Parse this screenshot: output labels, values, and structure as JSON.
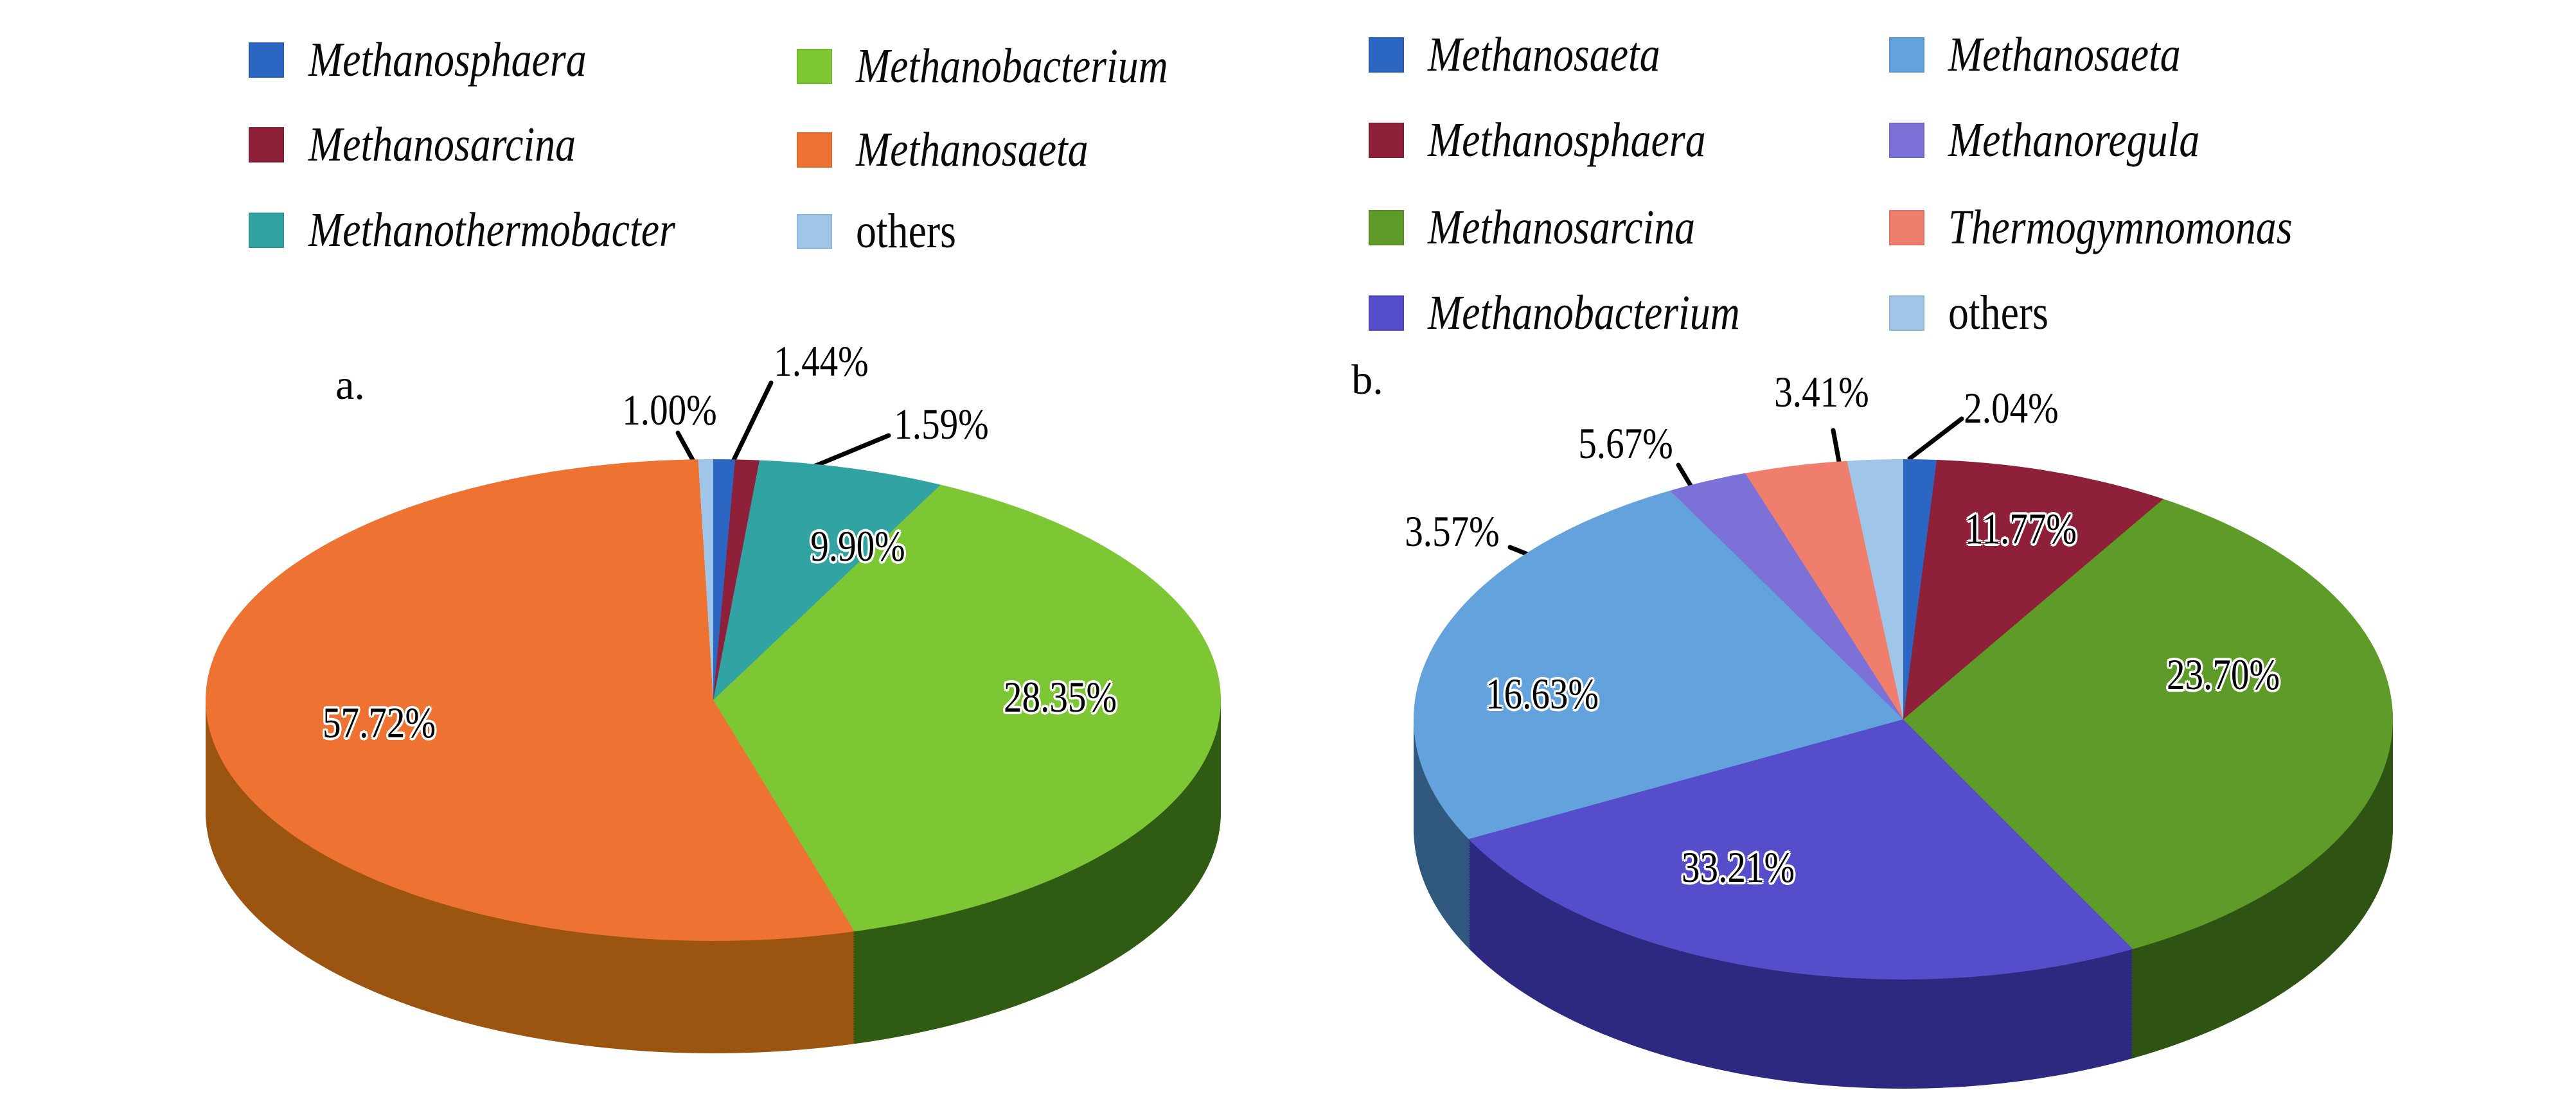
{
  "figure": {
    "background_color": "#ffffff",
    "legend_position": "top",
    "label_font_color": "#000000"
  },
  "chart_data": [
    {
      "type": "pie",
      "panel_tag": "a.",
      "effect": "3d",
      "slices": [
        {
          "label": "Methanosphaera",
          "value": 1.44,
          "color": "#2B66C2",
          "side_color": "#17356B"
        },
        {
          "label": "Methanosarcina",
          "value": 1.59,
          "color": "#8E2139",
          "side_color": "#4F1220"
        },
        {
          "label": "Methanothermobacter",
          "value": 9.9,
          "color": "#31A3A3",
          "side_color": "#1B5A59"
        },
        {
          "label": "Methanobacterium",
          "value": 28.35,
          "color": "#7CC733",
          "side_color": "#2F5B12"
        },
        {
          "label": "Methanosaeta",
          "value": 57.72,
          "color": "#EE7231",
          "side_color": "#9B5510"
        },
        {
          "label": "others",
          "value": 1.0,
          "color": "#9FC5E8",
          "side_color": "#56799E"
        }
      ]
    },
    {
      "type": "pie",
      "panel_tag": "b.",
      "effect": "3d",
      "slices": [
        {
          "label": "Methanosaeta",
          "value": 2.04,
          "color": "#2B66C2",
          "side_color": "#17356B"
        },
        {
          "label": "Methanosphaera",
          "value": 11.77,
          "color": "#8E2139",
          "side_color": "#4F1220"
        },
        {
          "label": "Methanosarcina",
          "value": 23.7,
          "color": "#5F9B28",
          "side_color": "#2E5313"
        },
        {
          "label": "Methanobacterium",
          "value": 33.21,
          "color": "#564DCB",
          "side_color": "#2E2980"
        },
        {
          "label": "Methanosaeta",
          "value": 16.63,
          "color": "#64A2DD",
          "side_color": "#31597F"
        },
        {
          "label": "Methanoregula",
          "value": 3.57,
          "color": "#7B71D6",
          "side_color": "#423C85"
        },
        {
          "label": "Thermogymnomonas",
          "value": 5.67,
          "color": "#F07E6C",
          "side_color": "#8C4038"
        },
        {
          "label": "others",
          "value": 3.41,
          "color": "#9FC5E8",
          "side_color": "#56799E"
        }
      ]
    }
  ]
}
